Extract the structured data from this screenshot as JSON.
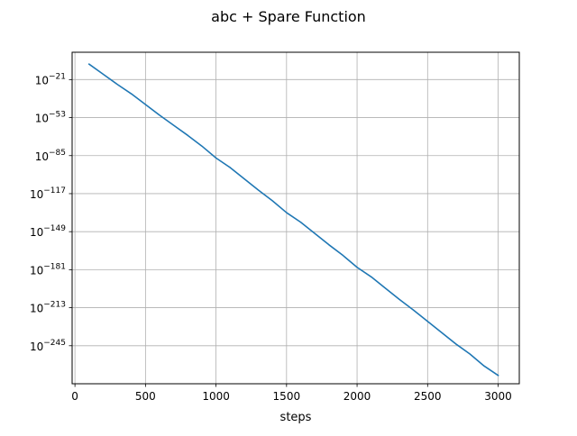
{
  "chart_data": {
    "type": "line",
    "title": "abc + Spare Function",
    "xlabel": "steps",
    "ylabel": "",
    "x_scale": "linear",
    "y_scale": "log",
    "xlim": [
      -20,
      3150
    ],
    "ylim_log10": [
      -277,
      2
    ],
    "x_ticks": [
      0,
      500,
      1000,
      1500,
      2000,
      2500,
      3000
    ],
    "x_tick_labels": [
      "0",
      "500",
      "1000",
      "1500",
      "2000",
      "2500",
      "3000"
    ],
    "y_ticks_log10": [
      -21,
      -53,
      -85,
      -117,
      -149,
      -181,
      -213,
      -245
    ],
    "y_tick_labels": [
      {
        "base": "10",
        "exp": "−21"
      },
      {
        "base": "10",
        "exp": "−53"
      },
      {
        "base": "10",
        "exp": "−85"
      },
      {
        "base": "10",
        "exp": "−117"
      },
      {
        "base": "10",
        "exp": "−149"
      },
      {
        "base": "10",
        "exp": "−181"
      },
      {
        "base": "10",
        "exp": "−213"
      },
      {
        "base": "10",
        "exp": "−245"
      }
    ],
    "grid": true,
    "series": [
      {
        "color": "#1f77b4",
        "x": [
          100,
          200,
          300,
          400,
          500,
          600,
          700,
          800,
          900,
          1000,
          1100,
          1200,
          1300,
          1400,
          1500,
          1600,
          1700,
          1800,
          1900,
          2000,
          2100,
          2200,
          2300,
          2400,
          2500,
          2600,
          2700,
          2800,
          2900,
          3000
        ],
        "y_log10": [
          -8,
          -16.5,
          -25,
          -33,
          -42,
          -51,
          -59.5,
          -68,
          -77,
          -87,
          -95,
          -104.5,
          -114,
          -123,
          -133,
          -141,
          -150.5,
          -160,
          -169,
          -179,
          -187,
          -196.5,
          -206,
          -215,
          -224.5,
          -234,
          -243.5,
          -252,
          -262,
          -270
        ]
      }
    ]
  }
}
